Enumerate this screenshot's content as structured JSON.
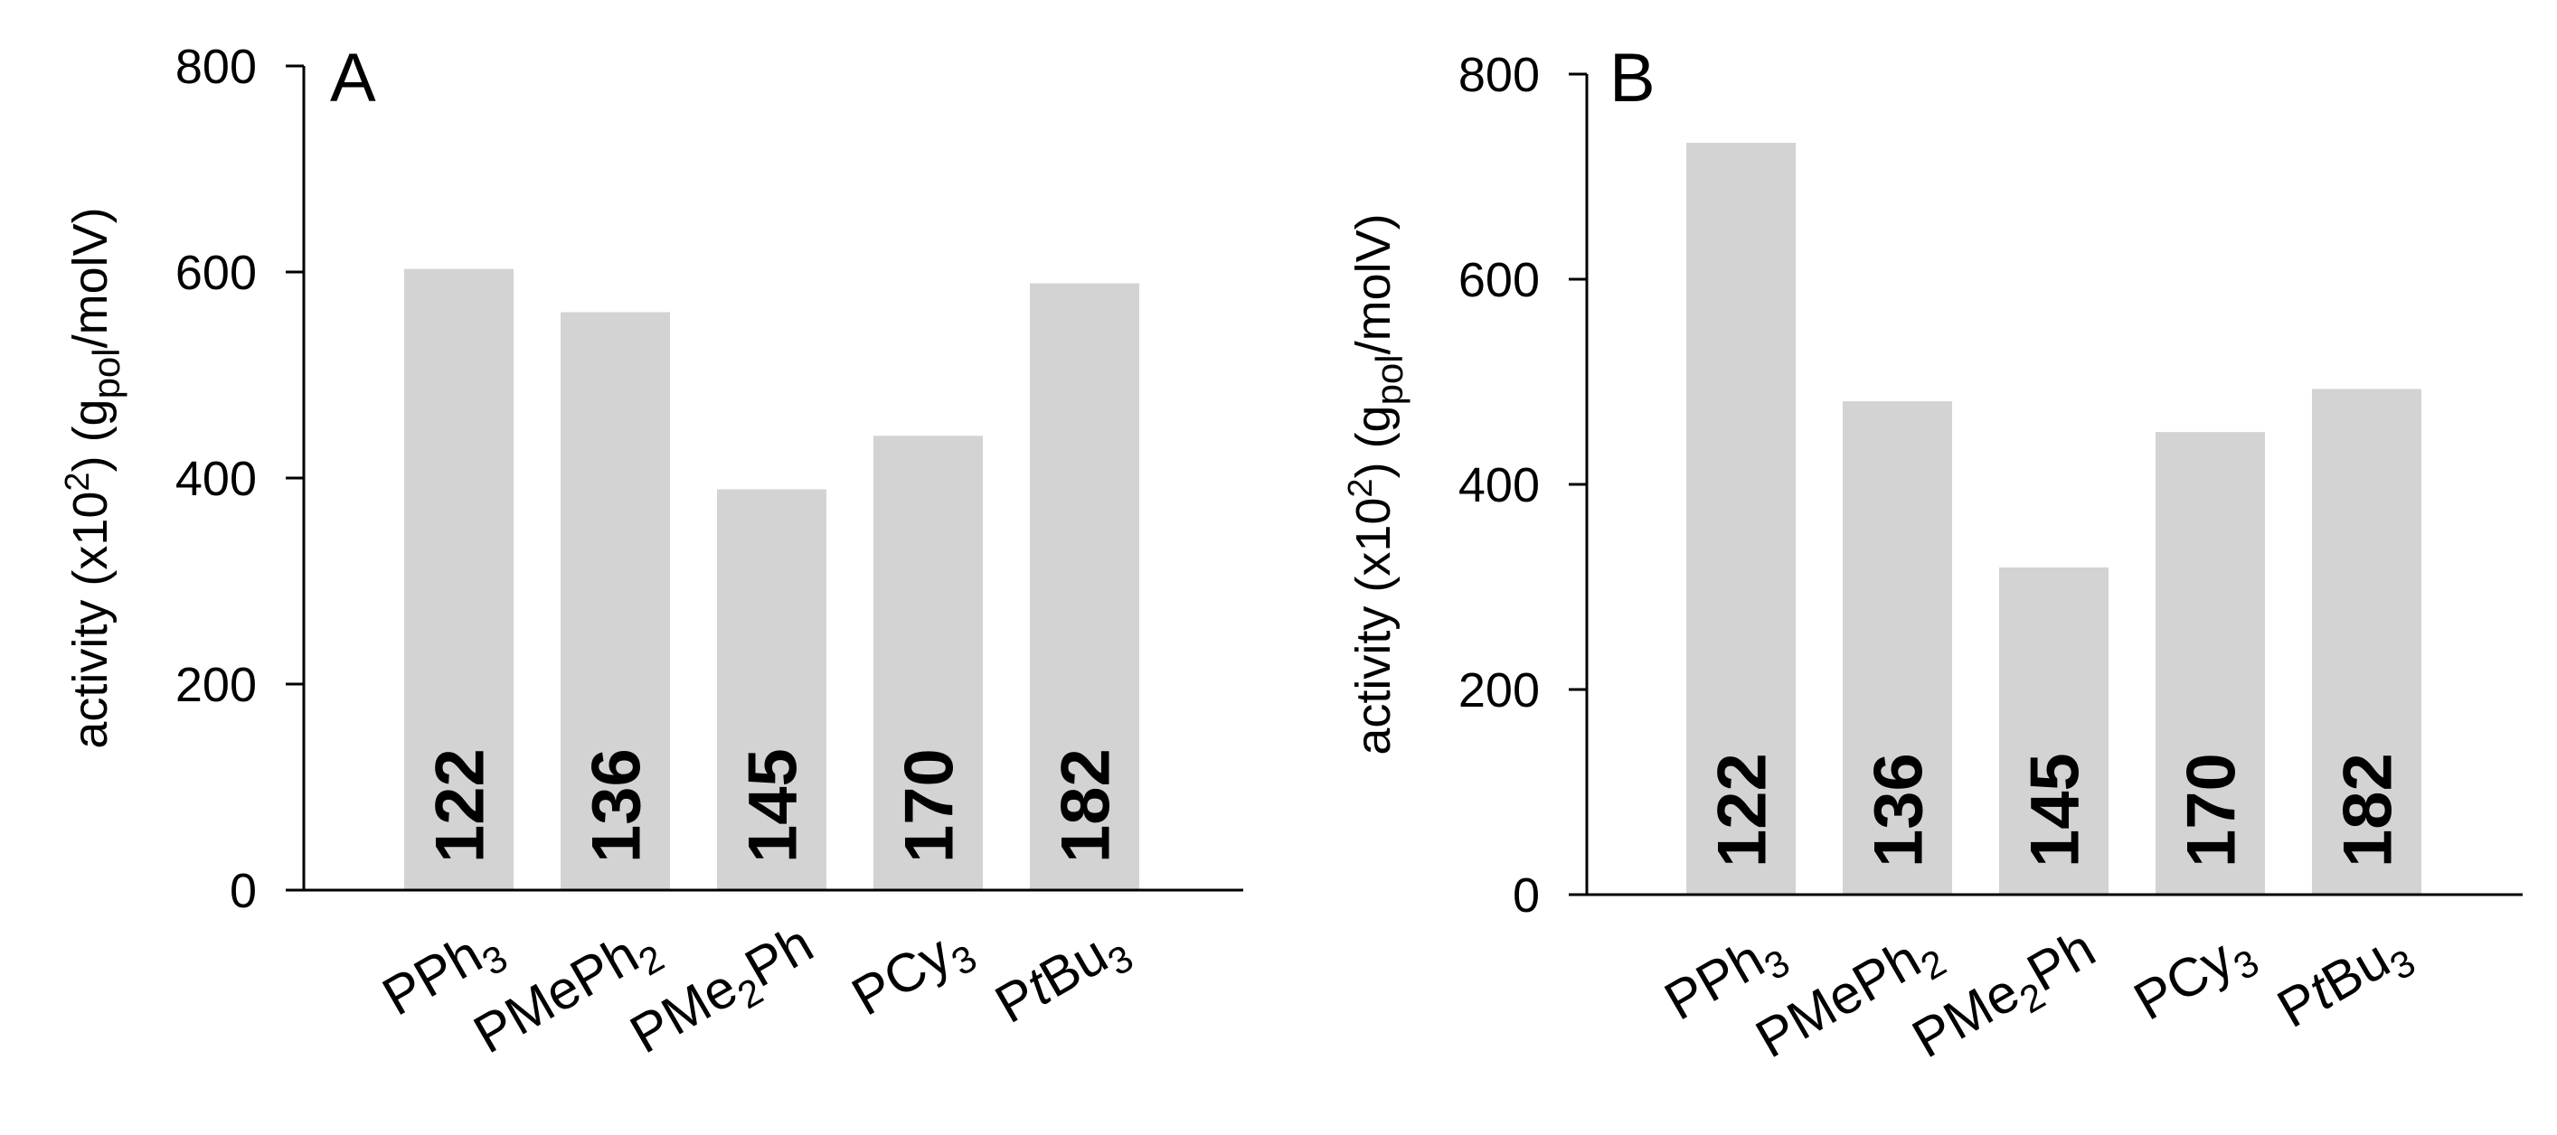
{
  "chart_data": [
    {
      "type": "bar",
      "panel_label": "A",
      "ylabel": {
        "prefix": "activity (x10",
        "sup": "2",
        "mid": ") (g",
        "sub": "pol",
        "suffix": "/molV)"
      },
      "ylim": [
        0,
        800
      ],
      "yticks": [
        "0",
        "200",
        "400",
        "600",
        "800"
      ],
      "categories": [
        {
          "parts": [
            {
              "t": "PPh"
            },
            {
              "t": "3",
              "sub": true
            }
          ]
        },
        {
          "parts": [
            {
              "t": "PMePh"
            },
            {
              "t": "2",
              "sub": true
            }
          ]
        },
        {
          "parts": [
            {
              "t": "PMe"
            },
            {
              "t": "2",
              "sub": true
            },
            {
              "t": "Ph"
            }
          ]
        },
        {
          "parts": [
            {
              "t": "PCy"
            },
            {
              "t": "3",
              "sub": true
            }
          ]
        },
        {
          "parts": [
            {
              "t": "P"
            },
            {
              "t": "t",
              "italic": true
            },
            {
              "t": "Bu"
            },
            {
              "t": "3",
              "sub": true
            }
          ]
        }
      ],
      "values": [
        603,
        561,
        389,
        441,
        589
      ],
      "bar_labels": [
        "122",
        "136",
        "145",
        "170",
        "182"
      ],
      "bar_color": "#d3d3d3",
      "grid": false
    },
    {
      "type": "bar",
      "panel_label": "B",
      "ylabel": {
        "prefix": "activity (x10",
        "sup": "2",
        "mid": ") (g",
        "sub": "pol",
        "suffix": "/molV)"
      },
      "ylim": [
        0,
        800
      ],
      "yticks": [
        "0",
        "200",
        "400",
        "600",
        "800"
      ],
      "categories": [
        {
          "parts": [
            {
              "t": "PPh"
            },
            {
              "t": "3",
              "sub": true
            }
          ]
        },
        {
          "parts": [
            {
              "t": "PMePh"
            },
            {
              "t": "2",
              "sub": true
            }
          ]
        },
        {
          "parts": [
            {
              "t": "PMe"
            },
            {
              "t": "2",
              "sub": true
            },
            {
              "t": "Ph"
            }
          ]
        },
        {
          "parts": [
            {
              "t": "PCy"
            },
            {
              "t": "3",
              "sub": true
            }
          ]
        },
        {
          "parts": [
            {
              "t": "P"
            },
            {
              "t": "t",
              "italic": true
            },
            {
              "t": "Bu"
            },
            {
              "t": "3",
              "sub": true
            }
          ]
        }
      ],
      "values": [
        733,
        481,
        319,
        451,
        493
      ],
      "bar_labels": [
        "122",
        "136",
        "145",
        "170",
        "182"
      ],
      "bar_color": "#d3d3d3",
      "grid": false
    }
  ]
}
